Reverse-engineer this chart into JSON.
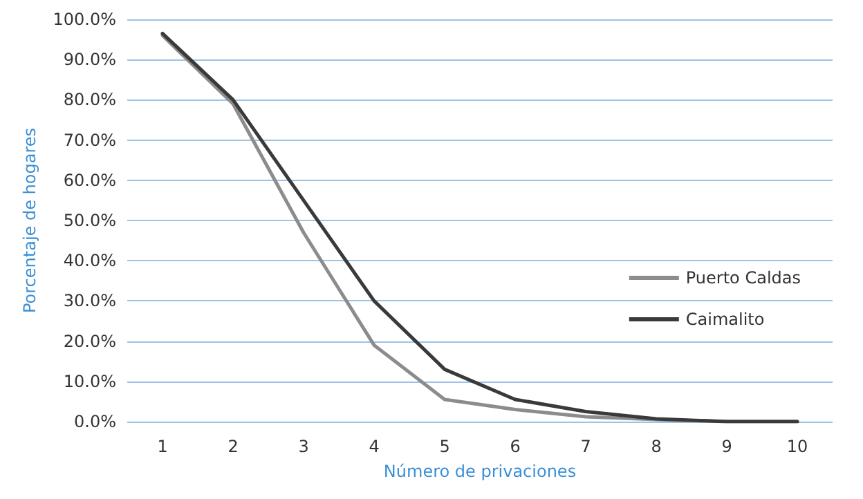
{
  "chart_data": {
    "type": "line",
    "xlabel": "Número de privaciones",
    "ylabel": "Porcentaje de hogares",
    "categories": [
      "1",
      "2",
      "3",
      "4",
      "5",
      "6",
      "7",
      "8",
      "9",
      "10"
    ],
    "series": [
      {
        "name": "Puerto Caldas",
        "color": "#8c8c8c",
        "values": [
          96,
          79,
          47,
          19,
          5.5,
          3,
          1.2,
          0.5,
          0,
          0
        ]
      },
      {
        "name": "Caimalito",
        "color": "#3a3a3a",
        "values": [
          96.5,
          80,
          55,
          30,
          13,
          5.5,
          2.5,
          0.7,
          0,
          0
        ]
      }
    ],
    "ylim": [
      0,
      100
    ],
    "yticks": [
      {
        "value": 0,
        "label": "0.0%"
      },
      {
        "value": 10,
        "label": "10.0%"
      },
      {
        "value": 20,
        "label": "20.0%"
      },
      {
        "value": 30,
        "label": "30.0%"
      },
      {
        "value": 40,
        "label": "40.0%"
      },
      {
        "value": 50,
        "label": "50.0%"
      },
      {
        "value": 60,
        "label": "60.0%"
      },
      {
        "value": 70,
        "label": "70.0%"
      },
      {
        "value": 80,
        "label": "80.0%"
      },
      {
        "value": 90,
        "label": "90.0%"
      },
      {
        "value": 100,
        "label": "100.0%"
      }
    ],
    "grid": "y",
    "legend": "right",
    "marker": "none",
    "line_style": "solid"
  }
}
